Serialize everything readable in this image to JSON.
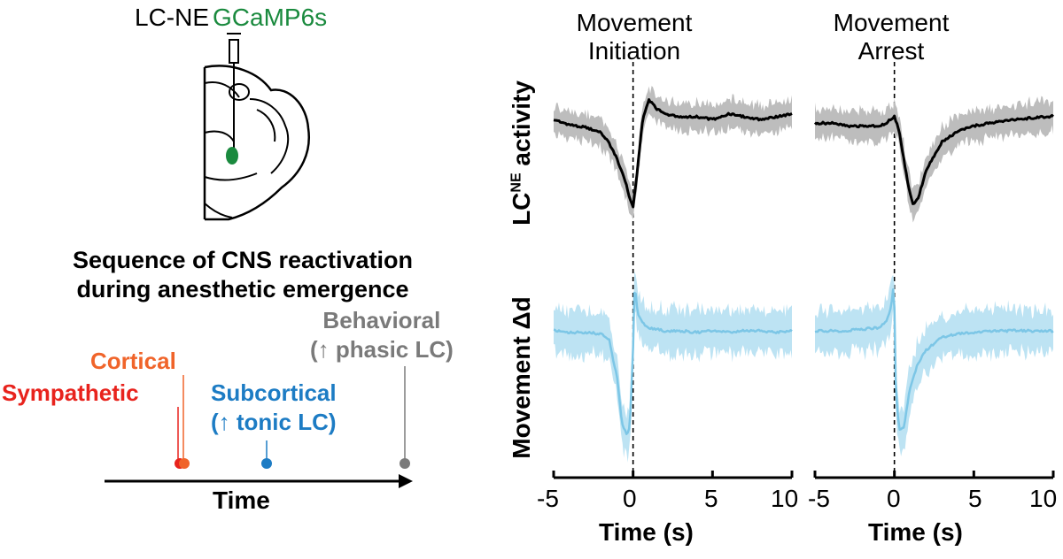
{
  "header": {
    "label_lc_ne": "LC-NE",
    "label_gcamp": "GCaMP6s"
  },
  "sequence": {
    "title_line1": "Sequence of CNS reactivation",
    "title_line2": "during anesthetic emergence",
    "time_label": "Time",
    "events": {
      "cortical": "Cortical",
      "sympathetic": "Sympathetic",
      "subcortical_line1": "Subcortical",
      "subcortical_line2": "(↑ tonic LC)",
      "behavioral_line1": "Behavioral",
      "behavioral_line2": "(↑ phasic LC)"
    }
  },
  "colors": {
    "sympathetic": "#e8231d",
    "cortical": "#f0642a",
    "subcortical": "#1d7cc4",
    "behavioral": "#7a7a7a",
    "gcamp_green": "#1a8a3e",
    "lc_trace": "#000000",
    "lc_band": "#bdbdbd",
    "move_trace": "#7cc6e6",
    "move_band": "#bde3f3"
  },
  "chart_data": [
    {
      "type": "line",
      "title_line1": "Movement",
      "title_line2": "Initiation",
      "xlabel": "Time (s)",
      "xlim": [
        -5,
        10
      ],
      "xticks": [
        "-5",
        "0",
        "5",
        "10"
      ],
      "ylabels": {
        "top_main": "LC",
        "top_sup": "NE",
        "top_tail": " activity",
        "bottom": "Movement Δd"
      },
      "event_line_x": 0,
      "series": [
        {
          "x": [
            -5,
            -4,
            -3,
            -2,
            -1.5,
            -1,
            -0.5,
            -0.2,
            0,
            0.3,
            0.6,
            1,
            1.5,
            2,
            3,
            4,
            5,
            6,
            7,
            8,
            9,
            10
          ],
          "y": [
            0.9,
            0.86,
            0.84,
            0.8,
            0.72,
            0.6,
            0.44,
            0.3,
            0.24,
            0.55,
            0.9,
            1.05,
            0.98,
            0.94,
            0.92,
            0.92,
            0.9,
            0.94,
            0.92,
            0.9,
            0.92,
            0.94
          ]
        },
        {
          "x": [
            -5,
            -4,
            -3,
            -2,
            -1.5,
            -1,
            -0.7,
            -0.4,
            -0.2,
            0,
            0.1,
            0.3,
            0.7,
            1,
            2,
            3,
            4,
            5,
            6,
            7,
            8,
            9,
            10
          ],
          "y": [
            0.7,
            0.69,
            0.69,
            0.68,
            0.64,
            0.4,
            0.12,
            0.05,
            0.1,
            0.6,
            1.0,
            0.8,
            0.74,
            0.72,
            0.7,
            0.7,
            0.69,
            0.7,
            0.69,
            0.7,
            0.7,
            0.69,
            0.7
          ]
        }
      ]
    },
    {
      "type": "line",
      "title_line1": "Movement",
      "title_line2": "Arrest",
      "xlabel": "Time (s)",
      "xlim": [
        -5,
        10
      ],
      "xticks": [
        "-5",
        "0",
        "5",
        "10"
      ],
      "event_line_x": 0,
      "series": [
        {
          "x": [
            -5,
            -4,
            -3,
            -2,
            -1,
            -0.5,
            0,
            0.3,
            0.6,
            0.9,
            1.2,
            1.5,
            2,
            3,
            4,
            5,
            6,
            7,
            8,
            9,
            10
          ],
          "y": [
            0.88,
            0.88,
            0.86,
            0.86,
            0.86,
            0.88,
            0.93,
            0.82,
            0.62,
            0.42,
            0.3,
            0.35,
            0.55,
            0.75,
            0.82,
            0.86,
            0.88,
            0.9,
            0.91,
            0.92,
            0.93
          ]
        },
        {
          "x": [
            -5,
            -4,
            -3,
            -2,
            -1,
            -0.5,
            -0.2,
            -0.05,
            0,
            0.1,
            0.3,
            0.6,
            1,
            1.5,
            2,
            3,
            4,
            5,
            6,
            7,
            8,
            9,
            10
          ],
          "y": [
            0.7,
            0.7,
            0.7,
            0.71,
            0.72,
            0.76,
            0.85,
            1.0,
            0.85,
            0.3,
            0.08,
            0.1,
            0.35,
            0.5,
            0.58,
            0.66,
            0.68,
            0.69,
            0.7,
            0.7,
            0.7,
            0.7,
            0.7
          ]
        }
      ]
    }
  ]
}
